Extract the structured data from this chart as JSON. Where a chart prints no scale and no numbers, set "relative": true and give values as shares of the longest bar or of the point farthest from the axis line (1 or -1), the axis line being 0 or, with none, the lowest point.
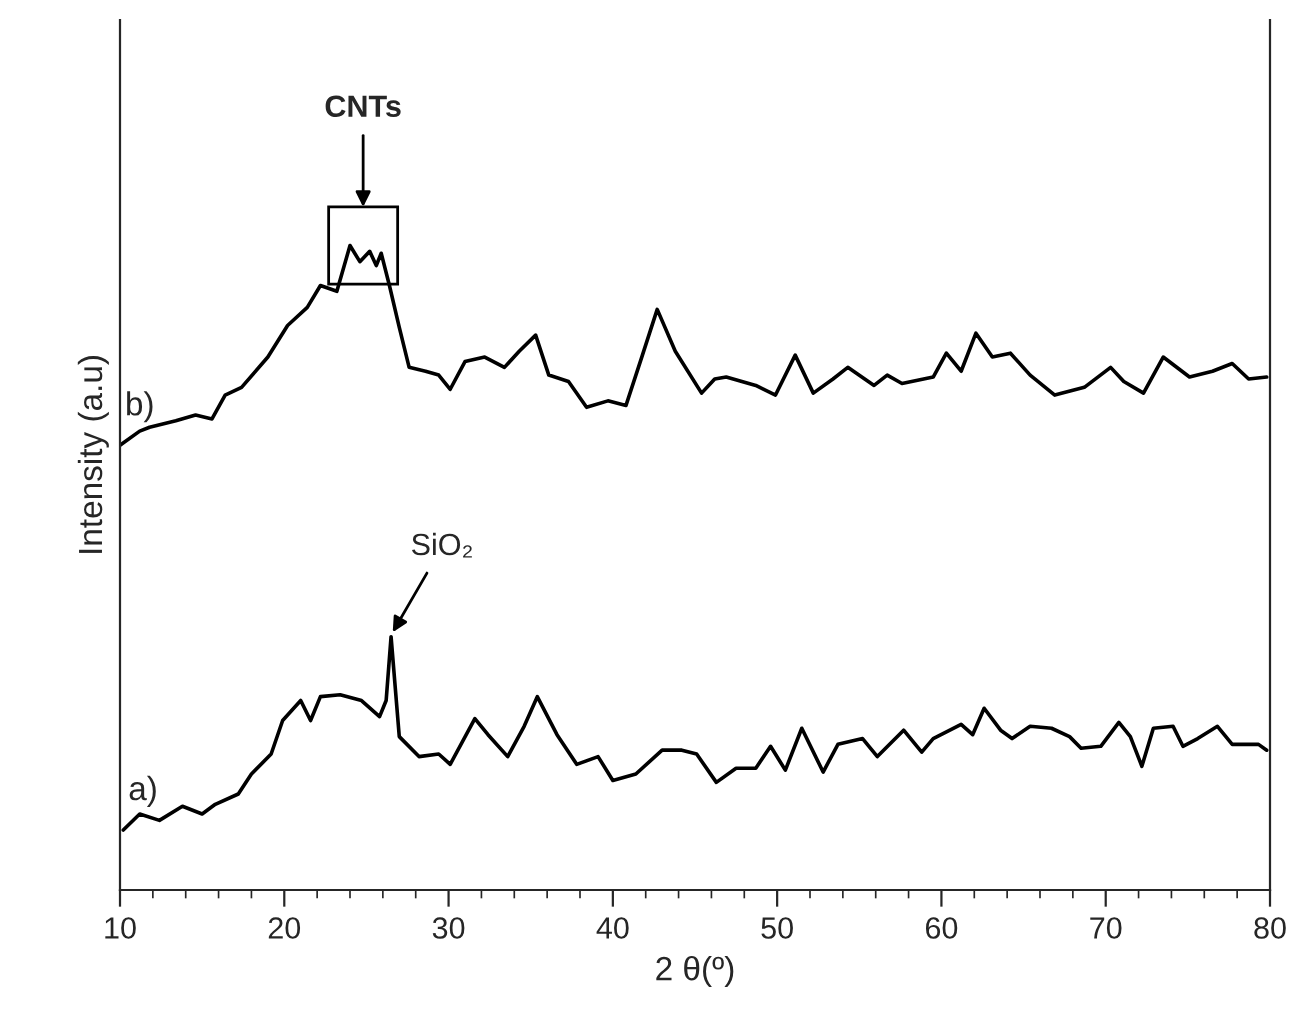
{
  "chart_data": {
    "type": "line",
    "relative": true,
    "xlabel": "2 θ(º)",
    "ylabel": "Intensity (a.u)",
    "xlim": [
      10,
      80
    ],
    "xticks": [
      10,
      20,
      30,
      40,
      50,
      60,
      70,
      80
    ],
    "grid": false,
    "marker": "none",
    "line_style": "solid",
    "annotations": [
      "CNTs",
      {
        "text": "SiO₂",
        "x": 26.6,
        "y": 0.4
      }
    ],
    "series": [
      {
        "name": "b)",
        "color": "#000000",
        "x": [
          10.0,
          11.2,
          11.8,
          13.4,
          14.6,
          15.6,
          16.4,
          17.4,
          19.0,
          20.2,
          21.4,
          22.2,
          23.2,
          24.0,
          24.6,
          25.2,
          25.6,
          25.9,
          26.4,
          27.0,
          27.6,
          28.6,
          29.4,
          30.1,
          31.0,
          32.2,
          33.4,
          34.3,
          35.3,
          36.1,
          37.3,
          38.4,
          39.7,
          40.8,
          41.8,
          42.7,
          43.8,
          45.4,
          46.2,
          46.9,
          48.7,
          49.9,
          51.1,
          52.2,
          53.4,
          54.3,
          55.9,
          56.7,
          57.6,
          59.5,
          60.3,
          61.2,
          62.1,
          63.1,
          64.2,
          65.4,
          66.9,
          68.7,
          70.3,
          71.1,
          72.3,
          73.5,
          75.1,
          76.5,
          77.7,
          78.7,
          79.8
        ],
        "values": [
          0.69,
          0.712,
          0.718,
          0.728,
          0.737,
          0.731,
          0.768,
          0.78,
          0.827,
          0.876,
          0.904,
          0.938,
          0.929,
          1.0,
          0.975,
          0.991,
          0.969,
          0.988,
          0.938,
          0.873,
          0.811,
          0.805,
          0.799,
          0.777,
          0.82,
          0.827,
          0.811,
          0.836,
          0.861,
          0.799,
          0.789,
          0.749,
          0.759,
          0.752,
          0.83,
          0.901,
          0.836,
          0.771,
          0.793,
          0.796,
          0.783,
          0.768,
          0.83,
          0.771,
          0.793,
          0.811,
          0.783,
          0.799,
          0.786,
          0.796,
          0.833,
          0.805,
          0.864,
          0.827,
          0.833,
          0.799,
          0.768,
          0.78,
          0.811,
          0.789,
          0.771,
          0.827,
          0.796,
          0.805,
          0.817,
          0.793,
          0.796
        ]
      },
      {
        "name": "a)",
        "color": "#000000",
        "x": [
          10.2,
          11.2,
          12.4,
          13.8,
          15.0,
          15.8,
          17.2,
          18.0,
          19.2,
          19.9,
          21.0,
          21.6,
          22.2,
          23.4,
          24.7,
          25.8,
          26.2,
          26.5,
          27.0,
          28.2,
          29.4,
          30.1,
          31.6,
          32.4,
          33.6,
          34.6,
          35.4,
          36.6,
          37.8,
          39.1,
          40.0,
          41.4,
          43.0,
          44.2,
          45.1,
          46.3,
          47.5,
          48.7,
          49.6,
          50.5,
          51.5,
          52.8,
          53.7,
          55.2,
          56.1,
          57.7,
          58.8,
          59.5,
          61.2,
          61.9,
          62.6,
          63.6,
          64.3,
          65.4,
          66.7,
          67.8,
          68.5,
          69.7,
          70.8,
          71.5,
          72.2,
          72.9,
          74.1,
          74.7,
          75.6,
          76.8,
          77.7,
          79.3,
          79.8
        ],
        "values": [
          0.093,
          0.118,
          0.108,
          0.13,
          0.118,
          0.133,
          0.149,
          0.18,
          0.211,
          0.263,
          0.294,
          0.263,
          0.3,
          0.303,
          0.294,
          0.269,
          0.294,
          0.393,
          0.238,
          0.207,
          0.211,
          0.195,
          0.266,
          0.241,
          0.207,
          0.254,
          0.3,
          0.241,
          0.195,
          0.207,
          0.17,
          0.18,
          0.217,
          0.217,
          0.211,
          0.167,
          0.189,
          0.189,
          0.223,
          0.186,
          0.251,
          0.183,
          0.226,
          0.235,
          0.207,
          0.248,
          0.214,
          0.235,
          0.257,
          0.241,
          0.282,
          0.248,
          0.235,
          0.254,
          0.251,
          0.238,
          0.22,
          0.223,
          0.26,
          0.238,
          0.192,
          0.251,
          0.254,
          0.223,
          0.235,
          0.254,
          0.226,
          0.226,
          0.217
        ]
      }
    ]
  }
}
